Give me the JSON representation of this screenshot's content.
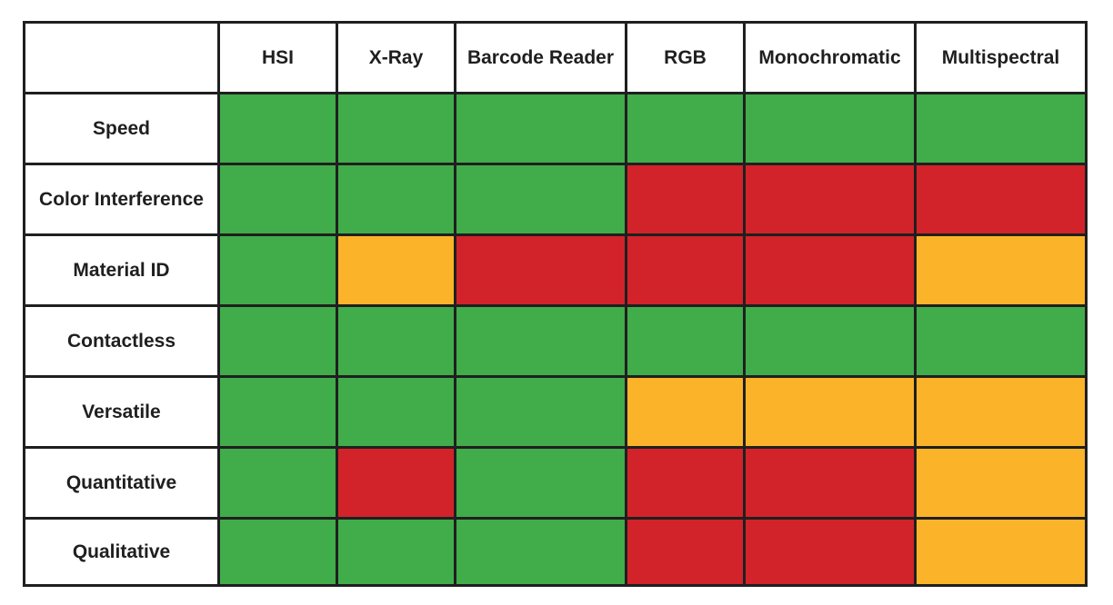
{
  "chart_data": {
    "type": "table",
    "columns": [
      "HSI",
      "X-Ray",
      "Barcode Reader",
      "RGB",
      "Monochromatic",
      "Multispectral"
    ],
    "rows": [
      {
        "label": "Speed",
        "ratings": [
          "good",
          "good",
          "good",
          "good",
          "good",
          "good"
        ]
      },
      {
        "label": "Color Interference",
        "ratings": [
          "good",
          "good",
          "good",
          "poor",
          "poor",
          "poor"
        ]
      },
      {
        "label": "Material ID",
        "ratings": [
          "good",
          "fair",
          "poor",
          "poor",
          "poor",
          "fair"
        ]
      },
      {
        "label": "Contactless",
        "ratings": [
          "good",
          "good",
          "good",
          "good",
          "good",
          "good"
        ]
      },
      {
        "label": "Versatile",
        "ratings": [
          "good",
          "good",
          "good",
          "fair",
          "fair",
          "fair"
        ]
      },
      {
        "label": "Quantitative",
        "ratings": [
          "good",
          "poor",
          "good",
          "poor",
          "poor",
          "fair"
        ]
      },
      {
        "label": "Qualitative",
        "ratings": [
          "good",
          "good",
          "good",
          "poor",
          "poor",
          "fair"
        ]
      }
    ],
    "rating_colors": {
      "good": "#41ac4a",
      "fair": "#fbb42a",
      "poor": "#d2232a"
    }
  }
}
